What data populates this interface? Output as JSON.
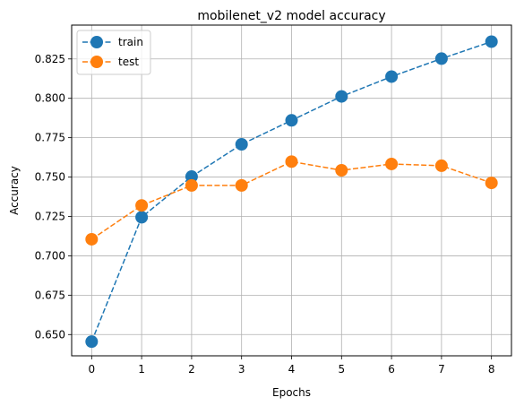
{
  "chart_data": {
    "type": "line",
    "title": "mobilenet_v2 model accuracy",
    "xlabel": "Epochs",
    "ylabel": "Accuracy",
    "x": [
      0,
      1,
      2,
      3,
      4,
      5,
      6,
      7,
      8
    ],
    "xlim": [
      -0.4,
      8.4
    ],
    "ylim": [
      0.6365,
      0.8465
    ],
    "xticks": [
      0,
      1,
      2,
      3,
      4,
      5,
      6,
      7,
      8
    ],
    "yticks": [
      0.65,
      0.675,
      0.7,
      0.725,
      0.75,
      0.775,
      0.8,
      0.825
    ],
    "ytick_labels": [
      "0.650",
      "0.675",
      "0.700",
      "0.725",
      "0.750",
      "0.775",
      "0.800",
      "0.825"
    ],
    "grid": true,
    "legend_position": "upper left",
    "series": [
      {
        "name": "train",
        "color": "#1f77b4",
        "line_style": "dashed",
        "marker": "circle",
        "values": [
          0.6455,
          0.7245,
          0.7503,
          0.7708,
          0.786,
          0.8012,
          0.8138,
          0.8252,
          0.836
        ]
      },
      {
        "name": "test",
        "color": "#ff7f0e",
        "line_style": "dashed",
        "marker": "circle",
        "values": [
          0.7105,
          0.732,
          0.7447,
          0.7447,
          0.7598,
          0.7543,
          0.7583,
          0.7572,
          0.7463
        ]
      }
    ]
  }
}
